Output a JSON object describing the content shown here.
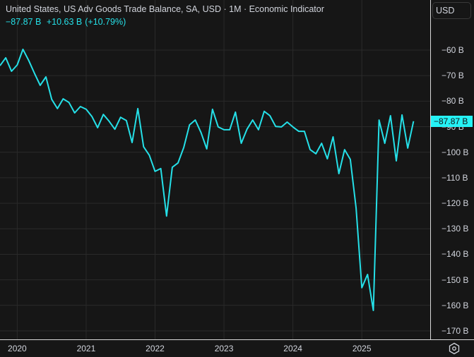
{
  "legend": {
    "title": "United States, US Adv Goods Trade Balance, SA, USD · 1M · Economic Indicator",
    "last_value": "−87.87 B",
    "change": "+10.63 B",
    "change_pct": "(+10.79%)"
  },
  "currency_button": "USD",
  "price_tag": "−87.87 B",
  "colors": {
    "line": "#25e0e8",
    "price_tag_bg": "#25f2f5",
    "background": "#161616",
    "grid": "#2a2a2a"
  },
  "chart_data": {
    "type": "line",
    "title": "United States, US Adv Goods Trade Balance, SA, USD · 1M · Economic Indicator",
    "xlabel": "",
    "ylabel": "USD",
    "unit": "B",
    "ylim": [
      -172,
      -53
    ],
    "grid": true,
    "yticks": [
      -60,
      -70,
      -80,
      -90,
      -100,
      -110,
      -120,
      -130,
      -140,
      -150,
      -160,
      -170
    ],
    "ytick_labels": [
      "−60 B",
      "−70 B",
      "−80 B",
      "−90 B",
      "−100 B",
      "−110 B",
      "−120 B",
      "−130 B",
      "−140 B",
      "−150 B",
      "−160 B",
      "−170 B"
    ],
    "xtick_labels": [
      "2020",
      "2021",
      "2022",
      "2023",
      "2024",
      "2025"
    ],
    "x_start": "2019-10",
    "frequency": "monthly",
    "series": [
      {
        "name": "US Adv Goods Trade Balance",
        "values": [
          -66.1,
          -63.0,
          -68.3,
          -65.8,
          -59.7,
          -64.1,
          -69.1,
          -73.8,
          -70.5,
          -79.3,
          -82.9,
          -79.1,
          -80.5,
          -84.6,
          -82.1,
          -83.2,
          -86.0,
          -90.4,
          -85.2,
          -87.9,
          -91.0,
          -86.3,
          -87.6,
          -96.2,
          -82.9,
          -97.9,
          -101.2,
          -107.5,
          -106.4,
          -125.0,
          -105.9,
          -104.2,
          -98.1,
          -89.3,
          -87.4,
          -92.3,
          -98.7,
          -83.2,
          -90.1,
          -91.2,
          -91.2,
          -84.3,
          -96.5,
          -91.0,
          -87.4,
          -91.2,
          -84.0,
          -85.7,
          -89.9,
          -90.1,
          -88.2,
          -90.1,
          -91.8,
          -91.8,
          -99.0,
          -100.6,
          -96.5,
          -102.6,
          -94.0,
          -108.4,
          -99.0,
          -102.8,
          -121.9,
          -153.1,
          -147.9,
          -162.0,
          -87.4,
          -96.5,
          -85.7,
          -103.4,
          -85.4,
          -98.4,
          -87.87
        ]
      }
    ],
    "last_value": -87.87,
    "change": 10.63,
    "change_pct": 10.79
  }
}
